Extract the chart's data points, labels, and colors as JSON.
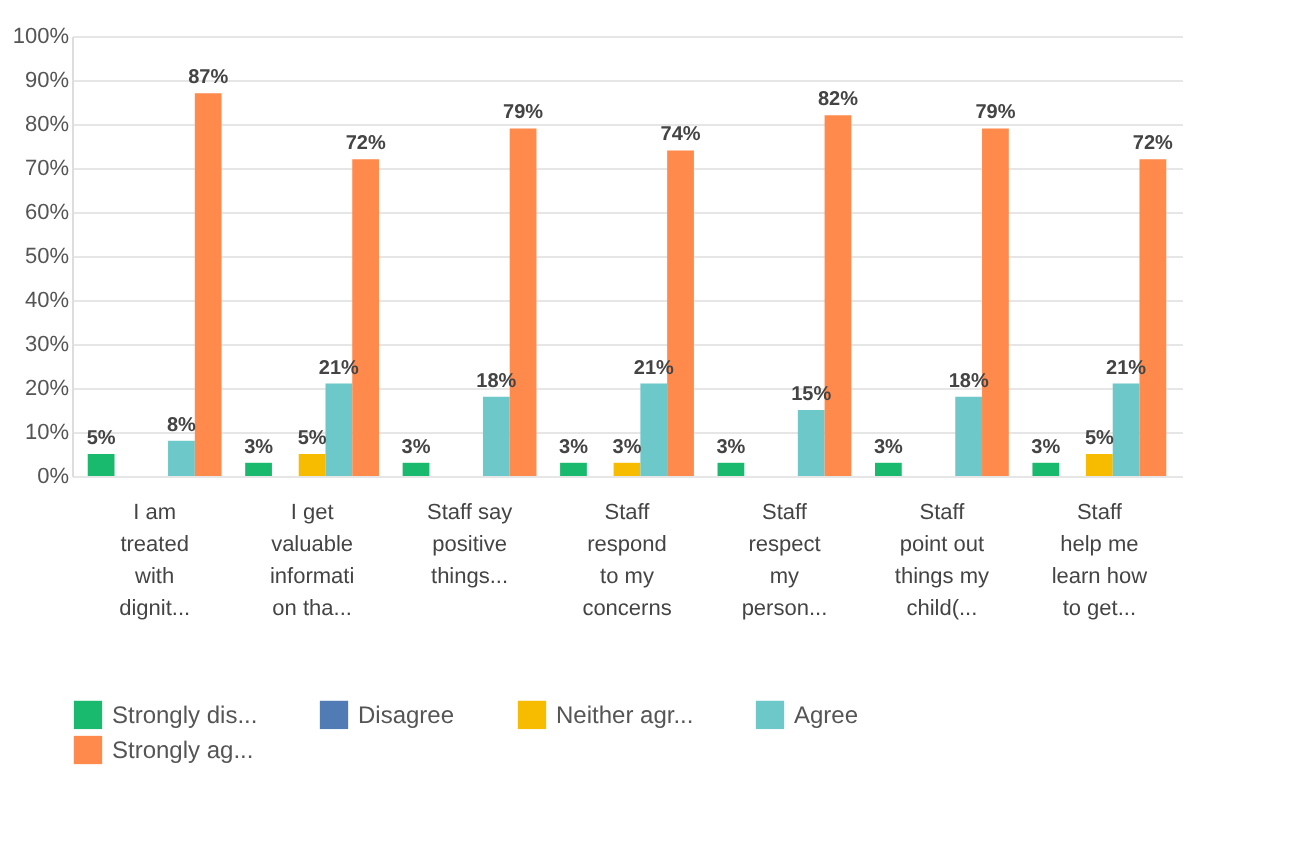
{
  "chart_data": {
    "type": "bar",
    "categories": [
      "I am treated with dignit...",
      "I get valuable information tha...",
      "Staff say positive things...",
      "Staff respond to my concerns",
      "Staff respect my person...",
      "Staff point out things my child(...",
      "Staff help me learn how to get..."
    ],
    "series": [
      {
        "name": "Strongly dis...",
        "color": "#1aba6e",
        "values": [
          5,
          3,
          3,
          3,
          3,
          3,
          3
        ],
        "value_labels": [
          "5%",
          "3%",
          "3%",
          "3%",
          "3%",
          "3%",
          "3%"
        ]
      },
      {
        "name": "Disagree",
        "color": "#507bb5",
        "values": [
          0,
          0,
          0,
          0,
          0,
          0,
          0
        ],
        "value_labels": [
          null,
          null,
          null,
          null,
          null,
          null,
          null
        ]
      },
      {
        "name": "Neither agr...",
        "color": "#f7bb00",
        "values": [
          0,
          5,
          0,
          3,
          0,
          0,
          5
        ],
        "value_labels": [
          null,
          "5%",
          null,
          "3%",
          null,
          null,
          "5%"
        ]
      },
      {
        "name": "Agree",
        "color": "#6cc8c9",
        "values": [
          8,
          21,
          18,
          21,
          15,
          18,
          21
        ],
        "value_labels": [
          "8%",
          "21%",
          "18%",
          "21%",
          "15%",
          "18%",
          "21%"
        ]
      },
      {
        "name": "Strongly ag...",
        "color": "#ff8a4c",
        "values": [
          87,
          72,
          79,
          74,
          82,
          79,
          72
        ],
        "value_labels": [
          "87%",
          "72%",
          "79%",
          "74%",
          "82%",
          "79%",
          "72%"
        ]
      }
    ],
    "ylim": [
      0,
      100
    ],
    "yticks": [
      {
        "value": 0,
        "label": "0%"
      },
      {
        "value": 10,
        "label": "10%"
      },
      {
        "value": 20,
        "label": "20%"
      },
      {
        "value": 30,
        "label": "30%"
      },
      {
        "value": 40,
        "label": "40%"
      },
      {
        "value": 50,
        "label": "50%"
      },
      {
        "value": 60,
        "label": "60%"
      },
      {
        "value": 70,
        "label": "70%"
      },
      {
        "value": 80,
        "label": "80%"
      },
      {
        "value": 90,
        "label": "90%"
      },
      {
        "value": 100,
        "label": "100%"
      }
    ],
    "grid": "y",
    "legend": "bottom left"
  }
}
